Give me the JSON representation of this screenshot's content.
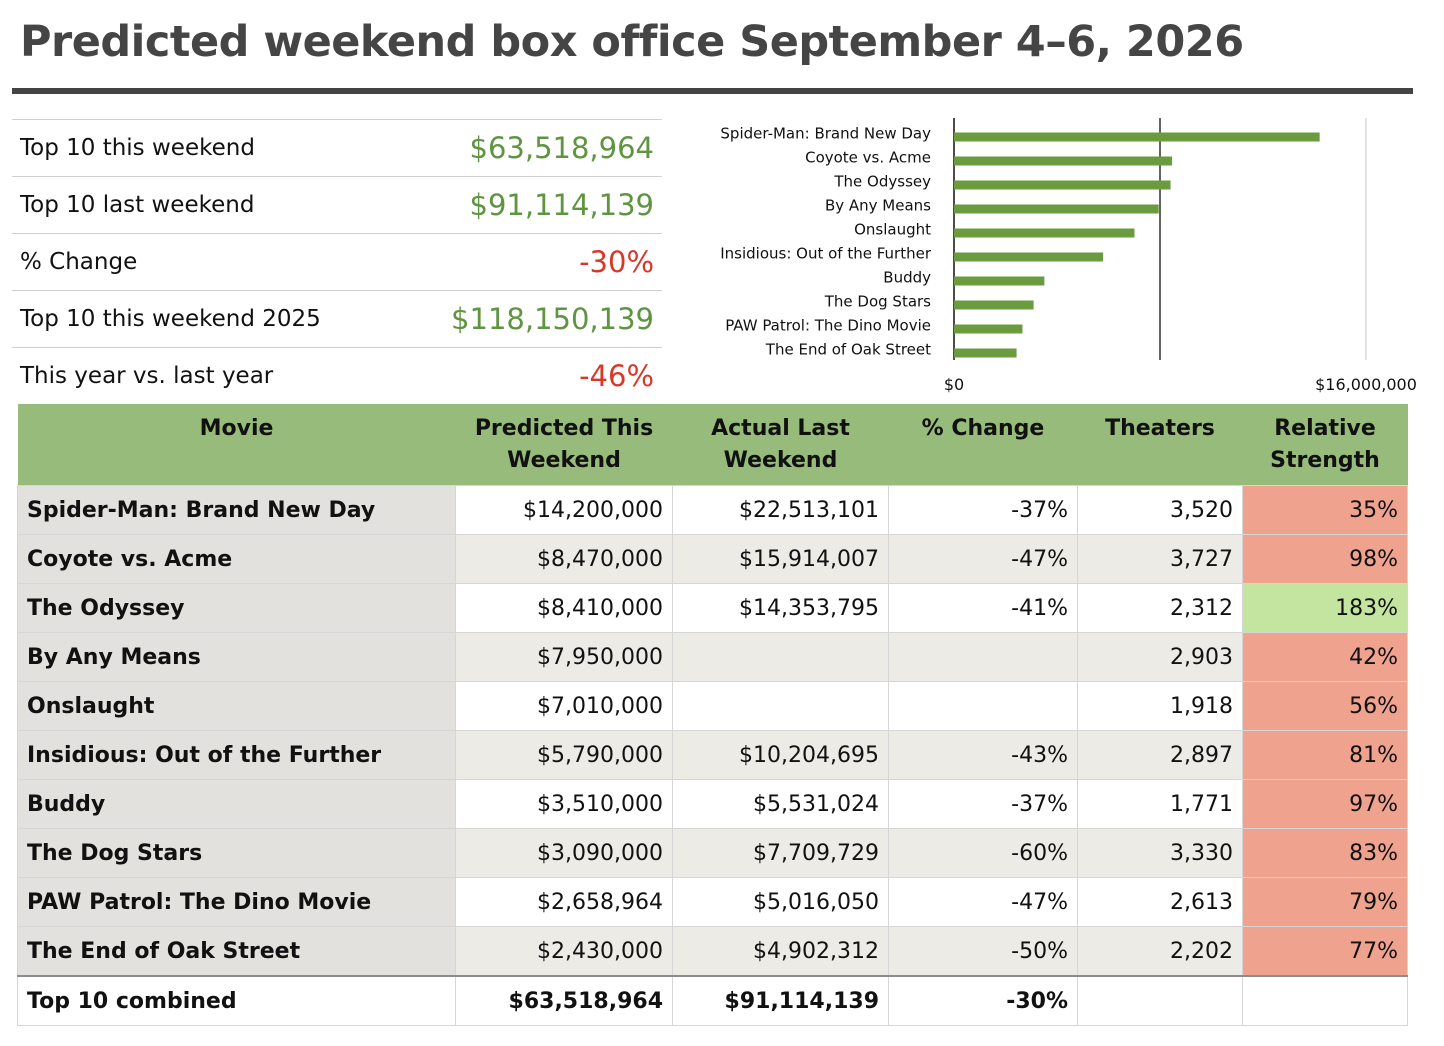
{
  "title": "Predicted weekend box office September 4–6, 2026",
  "summary": [
    {
      "label": "Top 10 this weekend",
      "value": "$63,518,964",
      "negative": false
    },
    {
      "label": "Top 10 last weekend",
      "value": "$91,114,139",
      "negative": false
    },
    {
      "label": "% Change",
      "value": "-30%",
      "negative": true
    },
    {
      "label": "Top 10 this weekend 2025",
      "value": "$118,150,139",
      "negative": false
    },
    {
      "label": "This year vs. last year",
      "value": "-46%",
      "negative": true
    }
  ],
  "colors": {
    "bar": "#6a9b3f",
    "header": "#97bb7b",
    "positive_text": "#5f9441",
    "negative_text": "#d7382a",
    "strength_low": "#efa28e",
    "strength_high": "#c3e59f"
  },
  "chart_data": {
    "type": "bar",
    "orientation": "horizontal",
    "categories": [
      "Spider-Man: Brand New Day",
      "Coyote vs. Acme",
      "The Odyssey",
      "By Any Means",
      "Onslaught",
      "Insidious: Out of the Further",
      "Buddy",
      "The Dog Stars",
      "PAW Patrol: The Dino Movie",
      "The End of Oak Street"
    ],
    "values": [
      14200000,
      8470000,
      8410000,
      7950000,
      7010000,
      5790000,
      3510000,
      3090000,
      2658964,
      2430000
    ],
    "xlim": [
      0,
      16000000
    ],
    "x_tick_labels": [
      "$0",
      "$16,000,000"
    ],
    "gridlines": [
      8000000,
      16000000
    ],
    "title": "",
    "xlabel": "",
    "ylabel": ""
  },
  "table": {
    "headers": {
      "movie": "Movie",
      "predicted_1": "Predicted This",
      "predicted_2": "Weekend",
      "actual_1": "Actual Last",
      "actual_2": "Weekend",
      "change": "% Change",
      "theaters": "Theaters",
      "strength_1": "Relative",
      "strength_2": "Strength"
    },
    "rows": [
      {
        "movie": "Spider-Man: Brand New Day",
        "predicted": "$14,200,000",
        "actual": "$22,513,101",
        "change": "-37%",
        "theaters": "3,520",
        "strength": "35%",
        "strength_level": "low"
      },
      {
        "movie": "Coyote vs. Acme",
        "predicted": "$8,470,000",
        "actual": "$15,914,007",
        "change": "-47%",
        "theaters": "3,727",
        "strength": "98%",
        "strength_level": "low"
      },
      {
        "movie": "The Odyssey",
        "predicted": "$8,410,000",
        "actual": "$14,353,795",
        "change": "-41%",
        "theaters": "2,312",
        "strength": "183%",
        "strength_level": "high"
      },
      {
        "movie": "By Any Means",
        "predicted": "$7,950,000",
        "actual": "",
        "change": "",
        "theaters": "2,903",
        "strength": "42%",
        "strength_level": "low"
      },
      {
        "movie": "Onslaught",
        "predicted": "$7,010,000",
        "actual": "",
        "change": "",
        "theaters": "1,918",
        "strength": "56%",
        "strength_level": "low"
      },
      {
        "movie": "Insidious: Out of the Further",
        "predicted": "$5,790,000",
        "actual": "$10,204,695",
        "change": "-43%",
        "theaters": "2,897",
        "strength": "81%",
        "strength_level": "low"
      },
      {
        "movie": "Buddy",
        "predicted": "$3,510,000",
        "actual": "$5,531,024",
        "change": "-37%",
        "theaters": "1,771",
        "strength": "97%",
        "strength_level": "low"
      },
      {
        "movie": "The Dog Stars",
        "predicted": "$3,090,000",
        "actual": "$7,709,729",
        "change": "-60%",
        "theaters": "3,330",
        "strength": "83%",
        "strength_level": "low"
      },
      {
        "movie": "PAW Patrol: The Dino Movie",
        "predicted": "$2,658,964",
        "actual": "$5,016,050",
        "change": "-47%",
        "theaters": "2,613",
        "strength": "79%",
        "strength_level": "low"
      },
      {
        "movie": "The End of Oak Street",
        "predicted": "$2,430,000",
        "actual": "$4,902,312",
        "change": "-50%",
        "theaters": "2,202",
        "strength": "77%",
        "strength_level": "low"
      }
    ],
    "total": {
      "label": "Top 10 combined",
      "predicted": "$63,518,964",
      "actual": "$91,114,139",
      "change": "-30%"
    }
  }
}
